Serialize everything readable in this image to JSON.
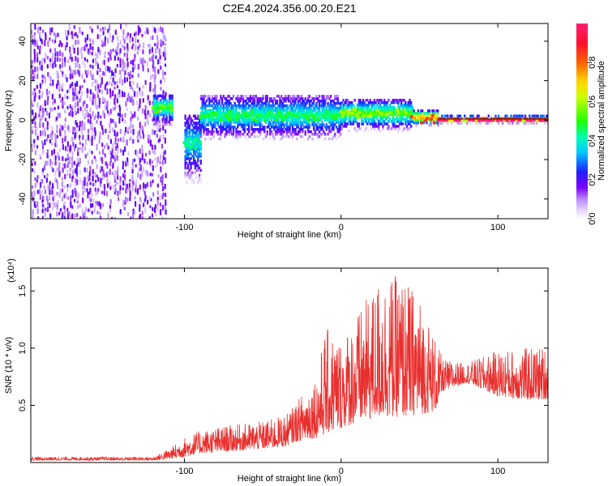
{
  "title": "C2E4.2024.356.00.20.E21",
  "chart_data": [
    {
      "type": "heatmap",
      "xlabel": "Height of straight line (km)",
      "ylabel": "Frequency (Hz)",
      "xlim": [
        -198,
        132
      ],
      "ylim": [
        -50,
        49
      ],
      "xticks": [
        -100,
        0,
        100
      ],
      "yticks": [
        -40,
        -20,
        0,
        20,
        40
      ],
      "grid": false,
      "regions": [
        {
          "x": [
            -198,
            -112
          ],
          "freq_spread_hz": [
            -50,
            49
          ],
          "amplitude": [
            0.05,
            0.2
          ],
          "description": "broadband noise"
        },
        {
          "x": [
            -120,
            -108
          ],
          "freq_center_hz": 6,
          "freq_spread_hz": [
            -5,
            12
          ],
          "amplitude": [
            0.2,
            0.5
          ]
        },
        {
          "x": [
            -100,
            -90
          ],
          "freq_center_hz": -12,
          "freq_spread_hz": [
            -32,
            2
          ],
          "amplitude": [
            0.2,
            0.4
          ]
        },
        {
          "x": [
            -90,
            0
          ],
          "freq_center_hz": 2,
          "freq_spread_hz": [
            -10,
            12
          ],
          "amplitude": [
            0.2,
            0.45
          ]
        },
        {
          "x": [
            0,
            45
          ],
          "freq_center_hz": 3,
          "freq_spread_hz": [
            -6,
            10
          ],
          "amplitude": [
            0.3,
            0.55
          ]
        },
        {
          "x": [
            45,
            62
          ],
          "freq_center_hz": 1,
          "freq_spread_hz": [
            -3,
            5
          ],
          "amplitude": [
            0.55,
            0.8
          ]
        },
        {
          "x": [
            62,
            132
          ],
          "freq_center_hz": 0,
          "freq_spread_hz": [
            -2,
            2
          ],
          "amplitude": [
            0.9,
            1.0
          ]
        }
      ],
      "colorbar": {
        "label": "Normalized spectral amplitude",
        "range": [
          0,
          1
        ],
        "ticks": [
          0.0,
          0.2,
          0.4,
          0.6,
          0.8
        ],
        "tick_labels": [
          "0.0",
          "0.2",
          "0.4",
          "0.6",
          "0.8"
        ],
        "colormap": "rainbow (white-violet-blue-cyan-green-yellow-red-magenta)"
      }
    },
    {
      "type": "line",
      "xlabel": "Height of straight line (km)",
      "ylabel": "SNR (10 * v/v)",
      "y_multiplier": "(x10⁴)",
      "xlim": [
        -198,
        132
      ],
      "ylim": [
        0,
        1.7
      ],
      "xticks": [
        -100,
        0,
        100
      ],
      "yticks": [
        0.5,
        1.0,
        1.5
      ],
      "ytick_labels": [
        "0.5",
        "1.0",
        "1.5"
      ],
      "grid": false,
      "series": [
        {
          "color": "#e8302e",
          "points": [
            {
              "x": -198,
              "base": 0.02,
              "peak": 0.05
            },
            {
              "x": -150,
              "base": 0.02,
              "peak": 0.05
            },
            {
              "x": -120,
              "base": 0.02,
              "peak": 0.05
            },
            {
              "x": -110,
              "base": 0.03,
              "peak": 0.12
            },
            {
              "x": -100,
              "base": 0.05,
              "peak": 0.22
            },
            {
              "x": -90,
              "base": 0.08,
              "peak": 0.28
            },
            {
              "x": -70,
              "base": 0.1,
              "peak": 0.33
            },
            {
              "x": -50,
              "base": 0.12,
              "peak": 0.36
            },
            {
              "x": -35,
              "base": 0.14,
              "peak": 0.42
            },
            {
              "x": -30,
              "base": 0.18,
              "peak": 0.5
            },
            {
              "x": -15,
              "base": 0.22,
              "peak": 0.8
            },
            {
              "x": -10,
              "base": 0.25,
              "peak": 1.18
            },
            {
              "x": 0,
              "base": 0.3,
              "peak": 1.1
            },
            {
              "x": 10,
              "base": 0.35,
              "peak": 1.3
            },
            {
              "x": 20,
              "base": 0.38,
              "peak": 1.5
            },
            {
              "x": 25,
              "base": 0.4,
              "peak": 1.65
            },
            {
              "x": 40,
              "base": 0.4,
              "peak": 1.62
            },
            {
              "x": 50,
              "base": 0.42,
              "peak": 1.45
            },
            {
              "x": 60,
              "base": 0.45,
              "peak": 1.1
            },
            {
              "x": 65,
              "base": 0.62,
              "peak": 0.9
            },
            {
              "x": 80,
              "base": 0.7,
              "peak": 0.87
            },
            {
              "x": 100,
              "base": 0.58,
              "peak": 0.98
            },
            {
              "x": 115,
              "base": 0.55,
              "peak": 1.0
            },
            {
              "x": 132,
              "base": 0.55,
              "peak": 1.02
            }
          ]
        }
      ]
    }
  ]
}
